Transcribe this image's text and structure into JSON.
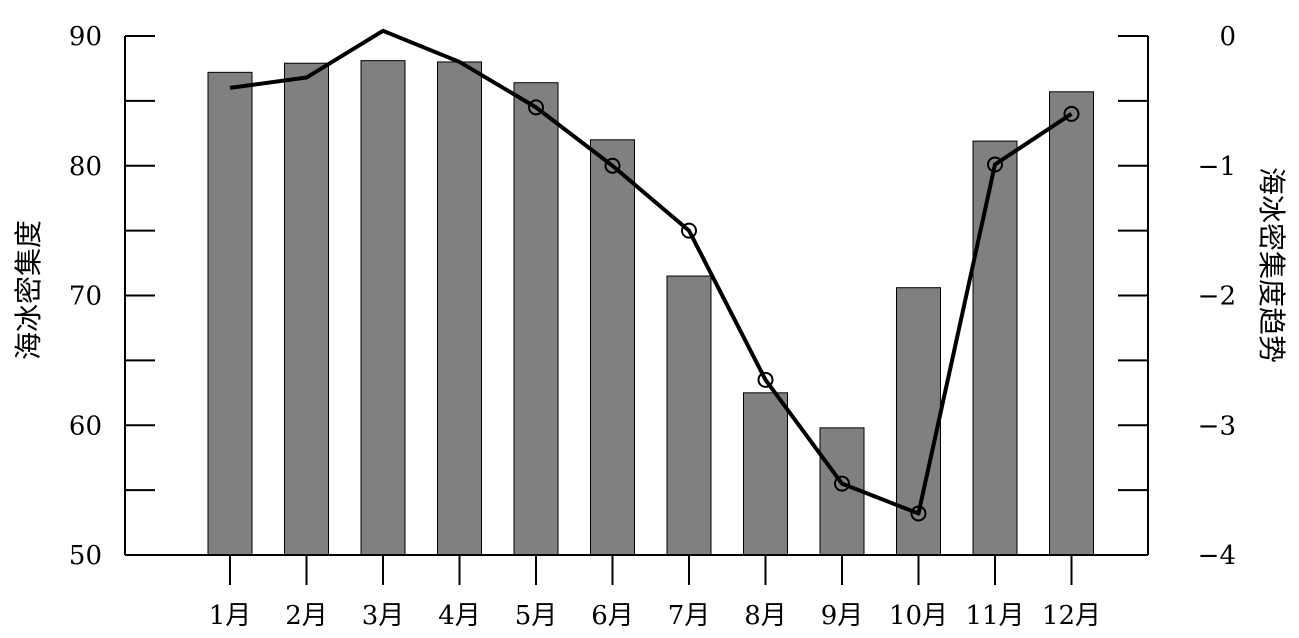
{
  "chart_data": {
    "type": "bar",
    "categories": [
      "1月",
      "2月",
      "3月",
      "4月",
      "5月",
      "6月",
      "7月",
      "8月",
      "9月",
      "10月",
      "11月",
      "12月"
    ],
    "series": [
      {
        "name": "",
        "type": "bar",
        "axis": "left",
        "values": [
          87.2,
          87.9,
          88.1,
          88.0,
          86.4,
          82.0,
          71.5,
          62.5,
          59.8,
          70.6,
          81.9,
          85.7
        ],
        "color": "#808080"
      },
      {
        "name": "",
        "type": "line",
        "axis": "right",
        "values": [
          -0.4,
          -0.32,
          0.04,
          -0.2,
          -0.55,
          -1.0,
          -1.5,
          -2.65,
          -3.45,
          -3.68,
          -0.99,
          -0.6
        ],
        "marked": [
          false,
          false,
          false,
          false,
          true,
          true,
          true,
          true,
          true,
          true,
          true,
          true
        ],
        "color": "#000000"
      }
    ],
    "ylabel": "海冰密集度",
    "y2label": "海冰密集度趋势",
    "ylim": [
      50,
      90
    ],
    "y2lim": [
      -4,
      0
    ],
    "yticks": [
      50,
      60,
      70,
      80,
      90
    ],
    "y2ticks": [
      "−4",
      "−3",
      "−2",
      "−1",
      "0"
    ],
    "grid": false
  }
}
